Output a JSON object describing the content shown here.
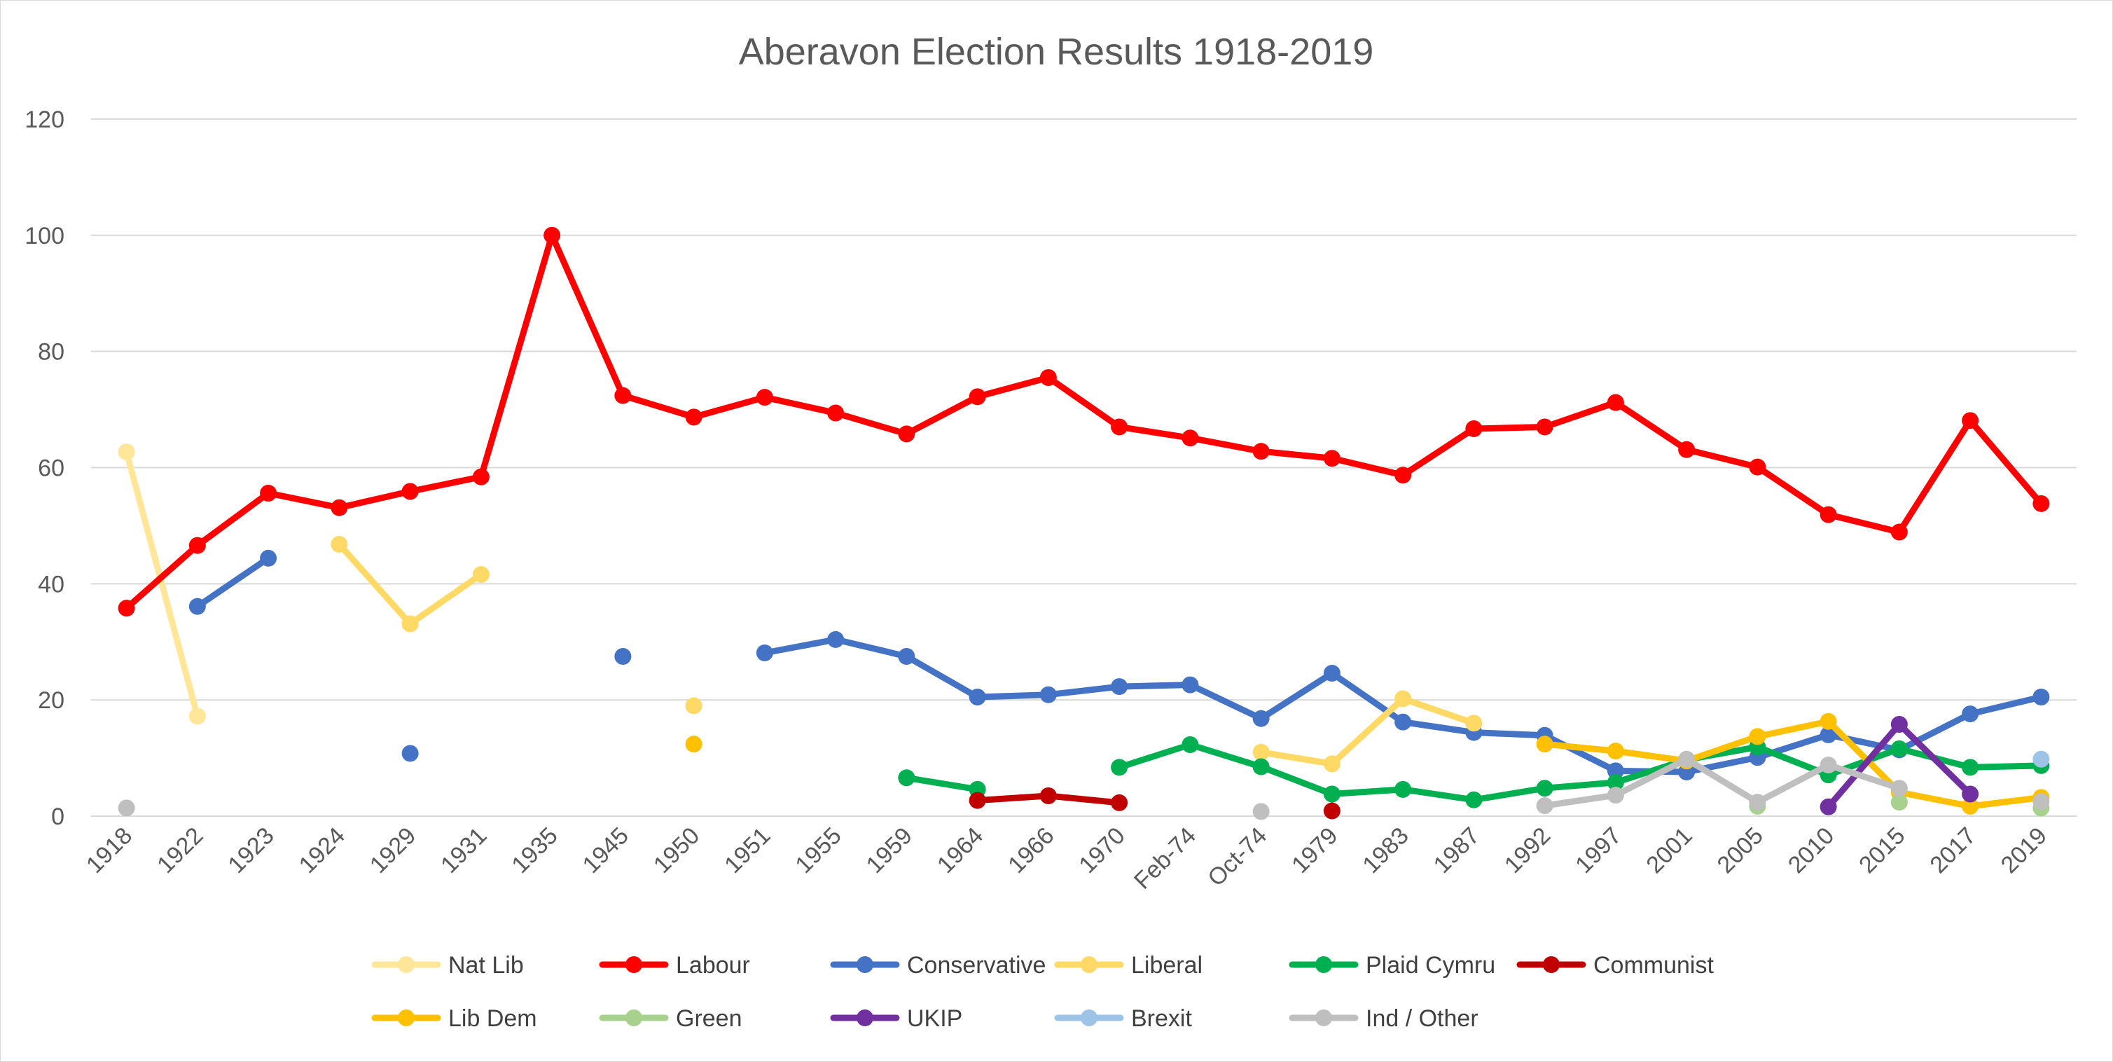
{
  "chart_data": {
    "type": "line",
    "title": "Aberavon Election Results 1918-2019",
    "xlabel": "",
    "ylabel": "",
    "ylim": [
      0,
      120
    ],
    "yticks": [
      0,
      20,
      40,
      60,
      80,
      100,
      120
    ],
    "grid": true,
    "legend_position": "bottom",
    "categories": [
      "1918",
      "1922",
      "1923",
      "1924",
      "1929",
      "1931",
      "1935",
      "1945",
      "1950",
      "1951",
      "1955",
      "1959",
      "1964",
      "1966",
      "1970",
      "Feb-74",
      "Oct-74",
      "1979",
      "1983",
      "1987",
      "1992",
      "1997",
      "2001",
      "2005",
      "2010",
      "2015",
      "2017",
      "2019"
    ],
    "series": [
      {
        "name": "Nat Lib",
        "color": "#FFE699",
        "values": [
          62.7,
          17.2,
          null,
          null,
          null,
          null,
          null,
          null,
          null,
          null,
          null,
          null,
          null,
          null,
          null,
          null,
          null,
          null,
          null,
          null,
          null,
          null,
          null,
          null,
          null,
          null,
          null,
          null
        ]
      },
      {
        "name": "Labour",
        "color": "#FF0000",
        "values": [
          35.8,
          46.6,
          55.6,
          53.1,
          55.9,
          58.4,
          100,
          72.4,
          68.7,
          72.1,
          69.4,
          65.8,
          72.2,
          75.5,
          67.0,
          65.1,
          62.8,
          61.6,
          58.7,
          66.7,
          67.0,
          71.2,
          63.1,
          60.1,
          51.9,
          48.9,
          68.1,
          53.8
        ]
      },
      {
        "name": "Conservative",
        "color": "#4472C4",
        "values": [
          null,
          36.1,
          44.4,
          null,
          10.8,
          null,
          null,
          27.5,
          null,
          28.1,
          30.4,
          27.5,
          20.5,
          20.9,
          22.3,
          22.6,
          16.8,
          24.6,
          16.2,
          14.4,
          13.9,
          7.8,
          7.6,
          10.1,
          14.0,
          11.4,
          17.6,
          20.5
        ]
      },
      {
        "name": "Liberal",
        "color": "#FFD966",
        "values": [
          null,
          null,
          null,
          46.8,
          33.1,
          41.6,
          null,
          null,
          19.0,
          null,
          null,
          null,
          null,
          null,
          null,
          null,
          11.0,
          9.0,
          20.2,
          16.0,
          null,
          null,
          null,
          null,
          null,
          null,
          null,
          null
        ]
      },
      {
        "name": "Plaid Cymru",
        "color": "#00B050",
        "values": [
          null,
          null,
          null,
          null,
          null,
          null,
          null,
          null,
          null,
          null,
          null,
          6.6,
          4.6,
          null,
          8.4,
          12.3,
          8.5,
          3.8,
          4.6,
          2.8,
          4.8,
          5.8,
          9.7,
          11.9,
          7.1,
          11.6,
          8.4,
          8.7
        ]
      },
      {
        "name": "Communist",
        "color": "#C00000",
        "values": [
          null,
          null,
          null,
          null,
          null,
          null,
          null,
          null,
          null,
          null,
          null,
          null,
          2.7,
          3.5,
          2.3,
          null,
          null,
          0.9,
          null,
          null,
          null,
          null,
          null,
          null,
          null,
          null,
          null,
          null
        ]
      },
      {
        "name": "Lib Dem",
        "color": "#FFC000",
        "values": [
          null,
          null,
          null,
          null,
          null,
          null,
          null,
          null,
          12.4,
          null,
          null,
          null,
          null,
          null,
          null,
          null,
          null,
          null,
          null,
          null,
          12.4,
          11.2,
          9.5,
          13.7,
          16.3,
          4.1,
          1.7,
          3.2
        ]
      },
      {
        "name": "Green",
        "color": "#A9D18E",
        "values": [
          null,
          null,
          null,
          null,
          null,
          null,
          null,
          null,
          null,
          null,
          null,
          null,
          null,
          null,
          null,
          null,
          null,
          null,
          null,
          null,
          null,
          null,
          null,
          1.7,
          null,
          2.4,
          null,
          1.4
        ]
      },
      {
        "name": "UKIP",
        "color": "#7030A0",
        "values": [
          null,
          null,
          null,
          null,
          null,
          null,
          null,
          null,
          null,
          null,
          null,
          null,
          null,
          null,
          null,
          null,
          null,
          null,
          null,
          null,
          null,
          null,
          null,
          null,
          1.6,
          15.8,
          3.8,
          null
        ]
      },
      {
        "name": "Brexit",
        "color": "#9DC3E6",
        "values": [
          null,
          null,
          null,
          null,
          null,
          null,
          null,
          null,
          null,
          null,
          null,
          null,
          null,
          null,
          null,
          null,
          null,
          null,
          null,
          null,
          null,
          null,
          null,
          null,
          null,
          null,
          null,
          9.8
        ]
      },
      {
        "name": "Ind / Other",
        "color": "#BFBFBF",
        "values": [
          1.4,
          null,
          null,
          null,
          null,
          null,
          null,
          null,
          null,
          null,
          null,
          null,
          null,
          null,
          null,
          null,
          0.8,
          null,
          null,
          null,
          1.8,
          3.6,
          9.8,
          2.4,
          8.8,
          4.8,
          null,
          2.5
        ]
      }
    ]
  }
}
